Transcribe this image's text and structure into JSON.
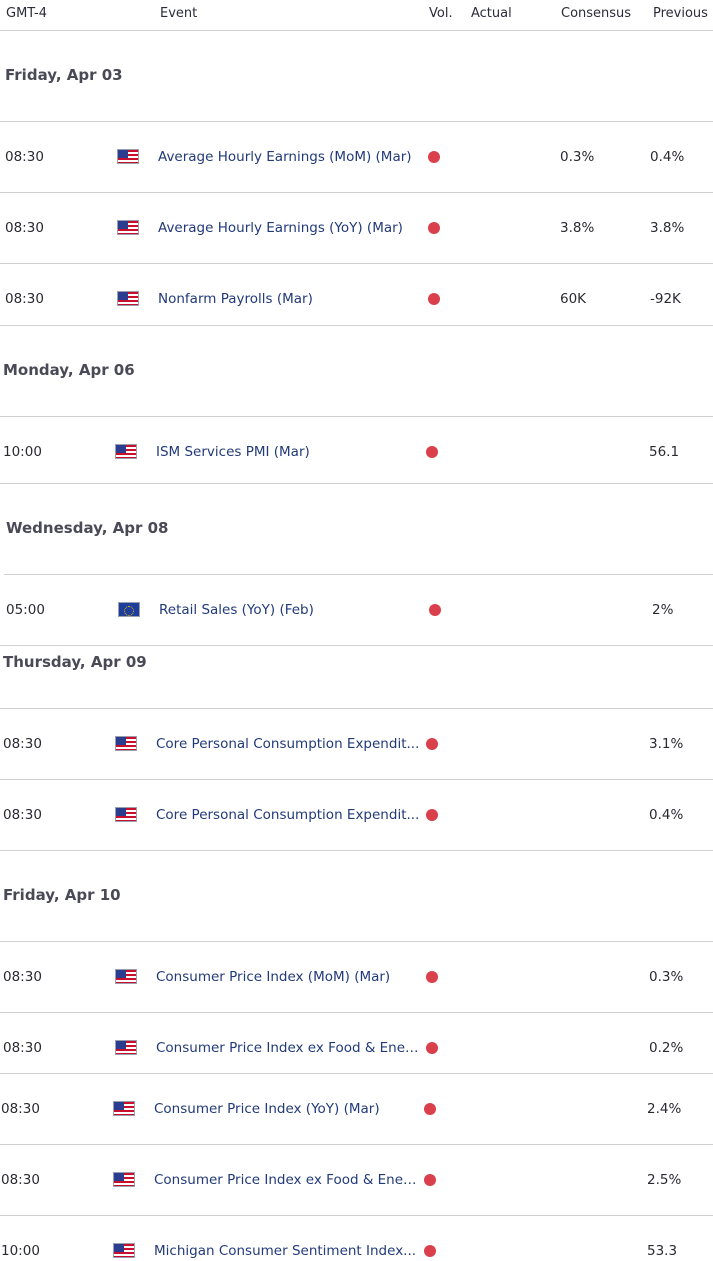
{
  "header": {
    "timezone": "GMT-4",
    "event": "Event",
    "vol": "Vol.",
    "actual": "Actual",
    "consensus": "Consensus",
    "previous": "Previous"
  },
  "colors": {
    "volatility_dot": "#d9404b",
    "event_text": "#223a7a"
  },
  "days": [
    {
      "date": "Friday, Apr 03",
      "events": [
        {
          "time": "08:30",
          "flag": "us-flag-icon",
          "name": "Average Hourly Earnings (MoM) (Mar)",
          "consensus": "0.3%",
          "previous": "0.4%"
        },
        {
          "time": "08:30",
          "flag": "us-flag-icon",
          "name": "Average Hourly Earnings (YoY) (Mar)",
          "consensus": "3.8%",
          "previous": "3.8%"
        },
        {
          "time": "08:30",
          "flag": "us-flag-icon",
          "name": "Nonfarm Payrolls (Mar)",
          "consensus": "60K",
          "previous": "-92K"
        }
      ]
    },
    {
      "date": "Monday, Apr 06",
      "events": [
        {
          "time": "10:00",
          "flag": "us-flag-icon",
          "name": "ISM Services PMI (Mar)",
          "consensus": "",
          "previous": "56.1"
        }
      ]
    },
    {
      "date": "Wednesday, Apr 08",
      "events": [
        {
          "time": "05:00",
          "flag": "eu-flag-icon",
          "name": "Retail Sales (YoY) (Feb)",
          "consensus": "",
          "previous": "2%"
        }
      ]
    },
    {
      "date": "Thursday, Apr 09",
      "events": [
        {
          "time": "08:30",
          "flag": "us-flag-icon",
          "name": "Core Personal Consumption Expendit...",
          "consensus": "",
          "previous": "3.1%"
        },
        {
          "time": "08:30",
          "flag": "us-flag-icon",
          "name": "Core Personal Consumption Expendit...",
          "consensus": "",
          "previous": "0.4%"
        }
      ]
    },
    {
      "date": "Friday, Apr 10",
      "events": [
        {
          "time": "08:30",
          "flag": "us-flag-icon",
          "name": "Consumer Price Index (MoM) (Mar)",
          "consensus": "",
          "previous": "0.3%"
        },
        {
          "time": "08:30",
          "flag": "us-flag-icon",
          "name": "Consumer Price Index ex Food & Ener...",
          "consensus": "",
          "previous": "0.2%"
        },
        {
          "time": "08:30",
          "flag": "us-flag-icon",
          "name": "Consumer Price Index (YoY) (Mar)",
          "consensus": "",
          "previous": "2.4%"
        },
        {
          "time": "08:30",
          "flag": "us-flag-icon",
          "name": "Consumer Price Index ex Food & Ener...",
          "consensus": "",
          "previous": "2.5%"
        },
        {
          "time": "10:00",
          "flag": "us-flag-icon",
          "name": "Michigan Consumer Sentiment Index...",
          "consensus": "",
          "previous": "53.3"
        }
      ]
    }
  ]
}
